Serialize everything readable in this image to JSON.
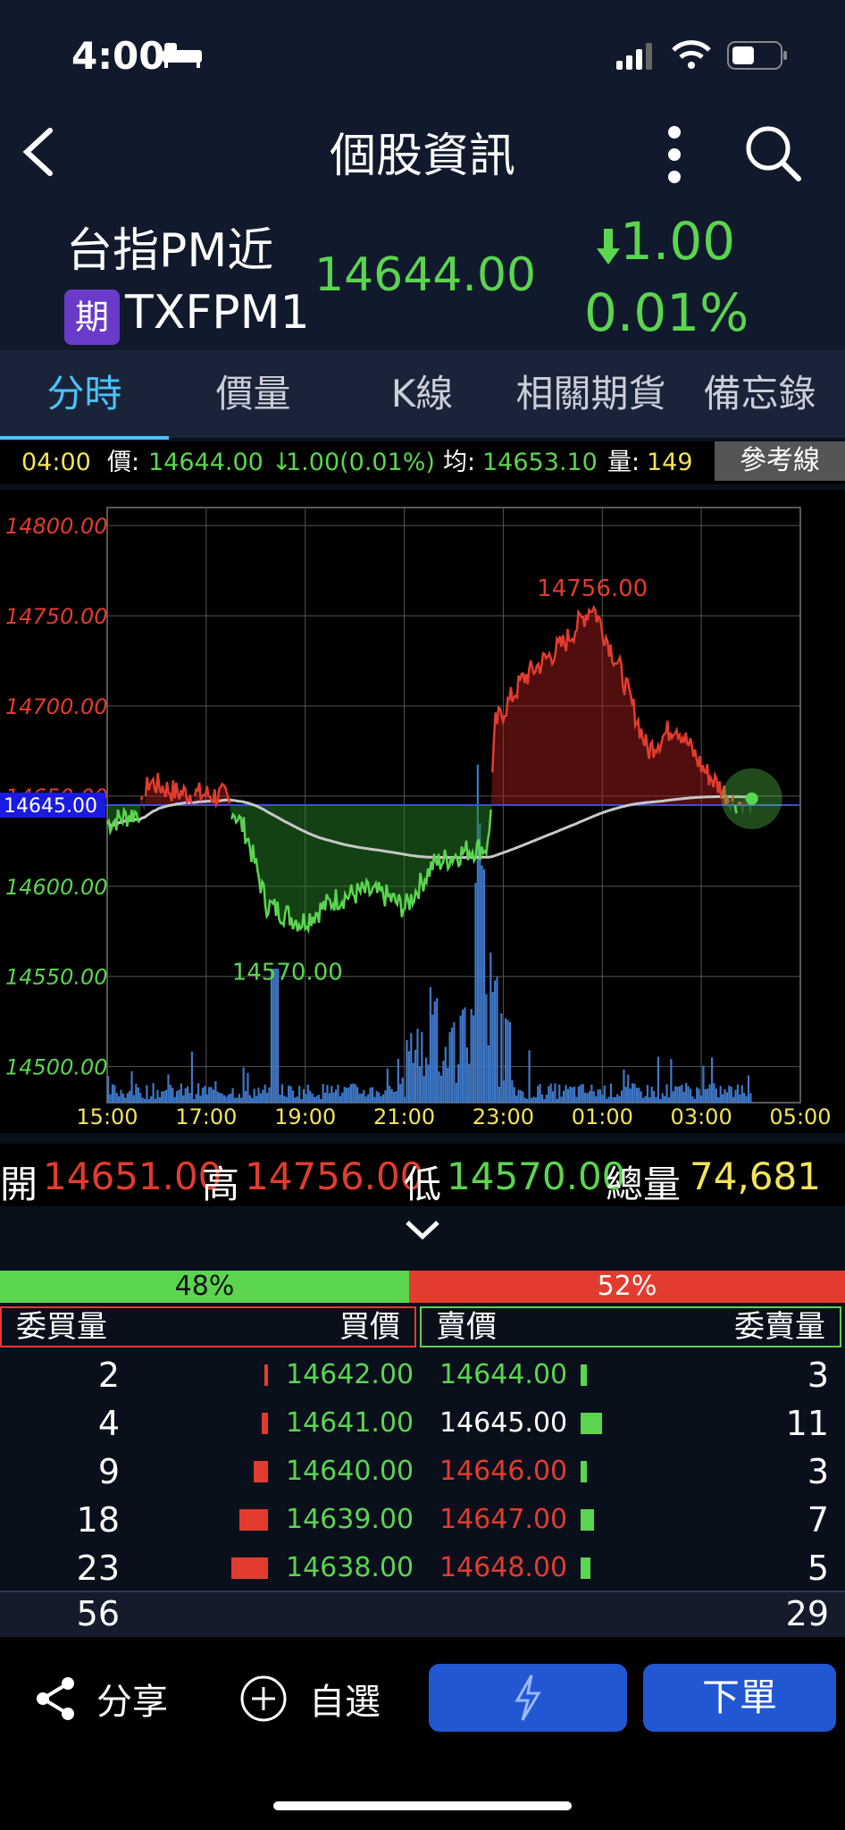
{
  "status": {
    "time": "4:00"
  },
  "nav": {
    "title": "個股資訊"
  },
  "quote": {
    "name": "台指PM近",
    "badge": "期",
    "code": "TXFPM1",
    "price": "14644.00",
    "change": "1.00",
    "change_pct": "0.01%"
  },
  "tabs": [
    "分時",
    "價量",
    "K線",
    "相關期貨",
    "備忘錄"
  ],
  "info": {
    "time": "04:00",
    "price_label": "價:",
    "price": "14644.00",
    "change": "1.00(0.01%)",
    "avg_label": "均:",
    "avg": "14653.10",
    "vol_label": "量:",
    "vol": "149",
    "ref_button": "參考線"
  },
  "chart_data": {
    "type": "line",
    "y_ticks": [
      "14800.00",
      "14750.00",
      "14700.00",
      "14650.00",
      "14600.00",
      "14550.00",
      "14500.00"
    ],
    "x_ticks": [
      "15:00",
      "17:00",
      "19:00",
      "21:00",
      "23:00",
      "01:00",
      "03:00",
      "05:00"
    ],
    "reference_price": "14645.00",
    "high_label": "14756.00",
    "low_label": "14570.00",
    "ylim": [
      14480,
      14810
    ],
    "colors": {
      "up": "#e23c2e",
      "down": "#5bd54f",
      "avg": "#c8c8c8",
      "volume": "#3f78c8",
      "ref": "#3a4fd8"
    }
  },
  "summary": {
    "open_label": "開",
    "open": "14651.00",
    "high_label": "高",
    "high": "14756.00",
    "low_label": "低",
    "low": "14570.00",
    "vol_label": "總量",
    "vol": "74,681"
  },
  "book": {
    "buy_pct": "48%",
    "sell_pct": "52%",
    "headers": {
      "bid_qty": "委買量",
      "bid_price": "買價",
      "ask_price": "賣價",
      "ask_qty": "委賣量"
    },
    "rows": [
      {
        "bid_qty": "2",
        "bid": "14642.00",
        "ask": "14644.00",
        "ask_qty": "3",
        "bid_bar": 0.06,
        "ask_bar": 0.15
      },
      {
        "bid_qty": "4",
        "bid": "14641.00",
        "ask": "14645.00",
        "ask_qty": "11",
        "bid_bar": 0.12,
        "ask_bar": 0.55
      },
      {
        "bid_qty": "9",
        "bid": "14640.00",
        "ask": "14646.00",
        "ask_qty": "3",
        "bid_bar": 0.27,
        "ask_bar": 0.15
      },
      {
        "bid_qty": "18",
        "bid": "14639.00",
        "ask": "14647.00",
        "ask_qty": "7",
        "bid_bar": 0.55,
        "ask_bar": 0.35
      },
      {
        "bid_qty": "23",
        "bid": "14638.00",
        "ask": "14648.00",
        "ask_qty": "5",
        "bid_bar": 0.7,
        "ask_bar": 0.25
      }
    ],
    "total_bid": "56",
    "total_ask": "29"
  },
  "bottom": {
    "share": "分享",
    "watch": "自選",
    "order": "下單"
  }
}
